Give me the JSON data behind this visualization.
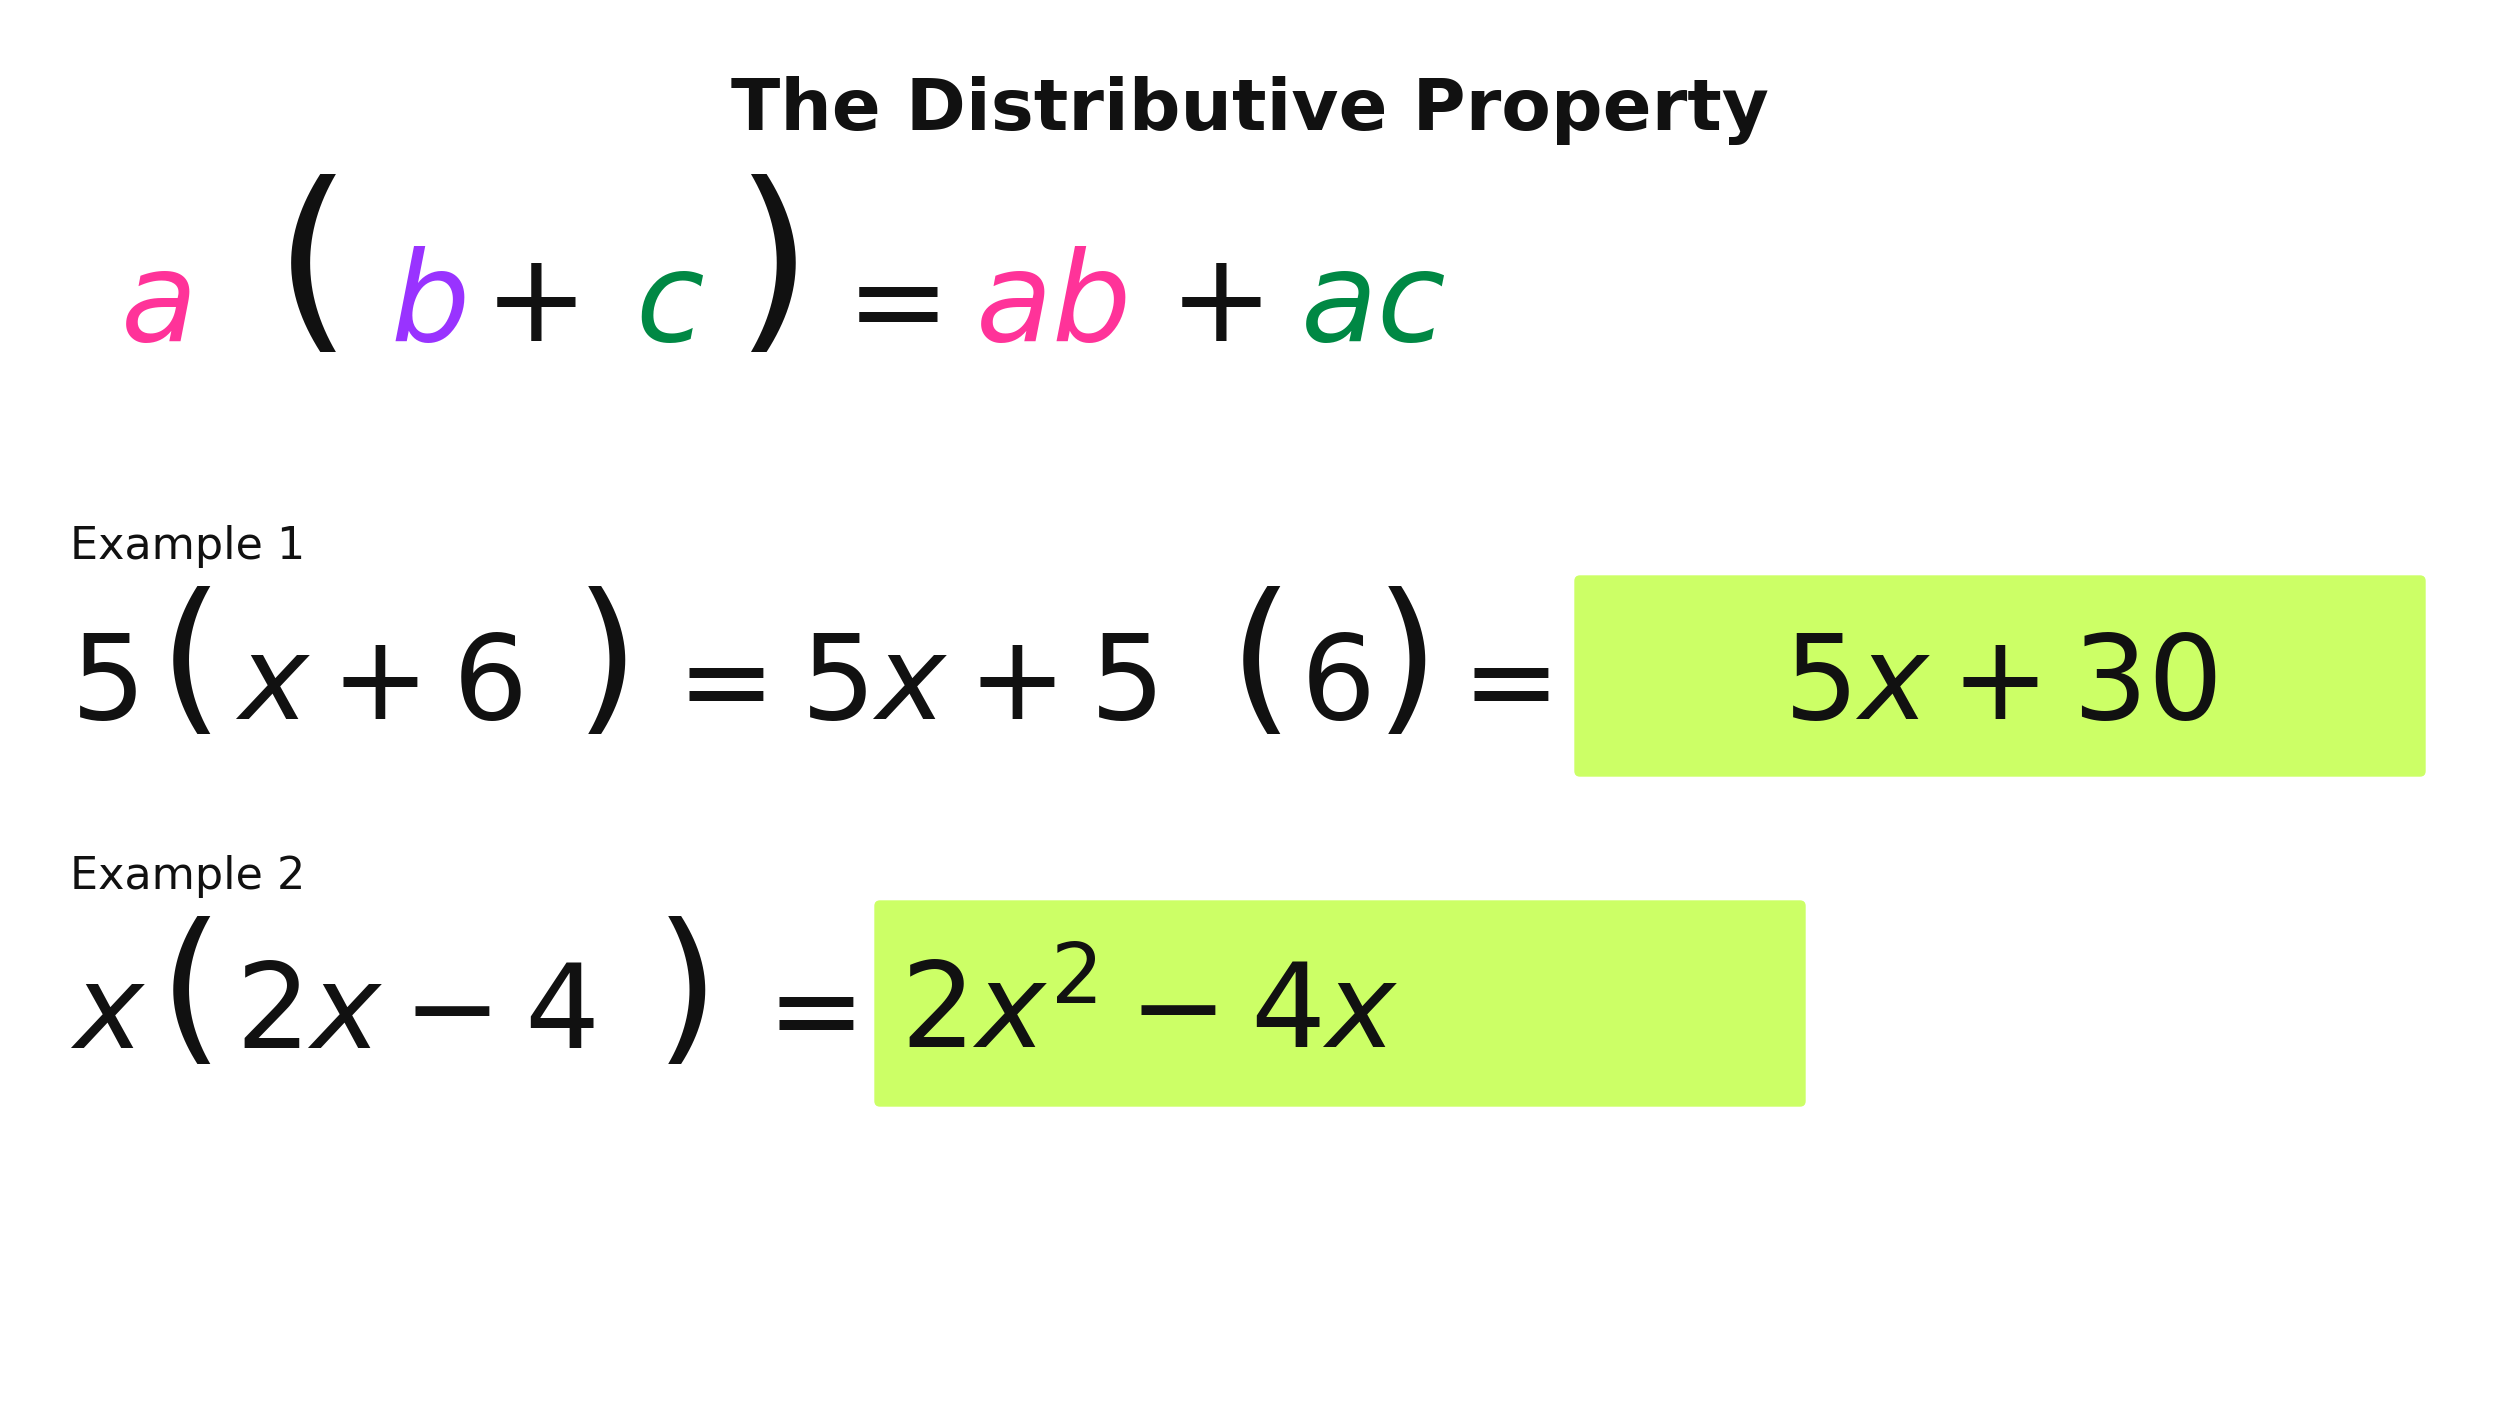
{
  "title": "The Distributive Property",
  "title_fontsize": 52,
  "title_fontweight": "bold",
  "title_color": "#111111",
  "background_color": "#ffffff",
  "color_pink": "#FF3399",
  "color_purple": "#9933FF",
  "color_green": "#008844",
  "color_black": "#111111",
  "color_highlight": "#CCFF66",
  "example_label_fontsize": 32,
  "formula_fontsize": 90,
  "example_fontsize": 85
}
